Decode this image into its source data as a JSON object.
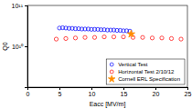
{
  "chart_data": {
    "type": "scatter",
    "x_label": "Eacc [MV/m]",
    "y_label": "Q0",
    "xlim": [
      0,
      25
    ],
    "xticks": [
      0,
      5,
      10,
      15,
      20,
      25
    ],
    "ylim": [
      1000000000,
      100000000000
    ],
    "yticks": [
      {
        "value": 10000000000,
        "label": "10¹⁰"
      },
      {
        "value": 100000000000,
        "label": "10¹¹"
      }
    ],
    "log": "y",
    "grid": false,
    "legend": "lower right",
    "series": [
      {
        "name": "Vertical Test",
        "color": "#0000ff",
        "marker": "circle",
        "x": [
          5.0,
          5.5,
          6.0,
          6.5,
          7.0,
          7.5,
          8.0,
          8.5,
          9.0,
          9.5,
          10.0,
          10.5,
          11.0,
          11.5,
          12.0,
          12.5,
          13.0,
          13.5,
          14.0,
          14.5,
          15.0,
          15.5,
          16.0
        ],
        "values": [
          28000000000,
          28500000000,
          28000000000,
          27500000000,
          27500000000,
          27000000000,
          27000000000,
          26500000000,
          26500000000,
          26500000000,
          26000000000,
          26000000000,
          26000000000,
          25500000000,
          25500000000,
          25000000000,
          25000000000,
          25000000000,
          24500000000,
          24500000000,
          24000000000,
          24000000000,
          23500000000
        ]
      },
      {
        "name": "Horizontal Test 2/10/12",
        "color": "#ff0000",
        "marker": "circle",
        "x": [
          4.5,
          6.0,
          7.5,
          9.0,
          10.5,
          12.0,
          13.5,
          15.0,
          16.5,
          18.0,
          19.5,
          21.0,
          22.5,
          24.0
        ],
        "values": [
          15000000000,
          15500000000,
          16000000000,
          16500000000,
          16500000000,
          17000000000,
          17000000000,
          17000000000,
          16500000000,
          16500000000,
          16000000000,
          16000000000,
          15500000000,
          15000000000
        ]
      },
      {
        "name": "Cornell ERL Specification",
        "color": "#ff8c00",
        "marker": "star",
        "x": [
          16.2
        ],
        "values": [
          20000000000
        ]
      }
    ]
  }
}
